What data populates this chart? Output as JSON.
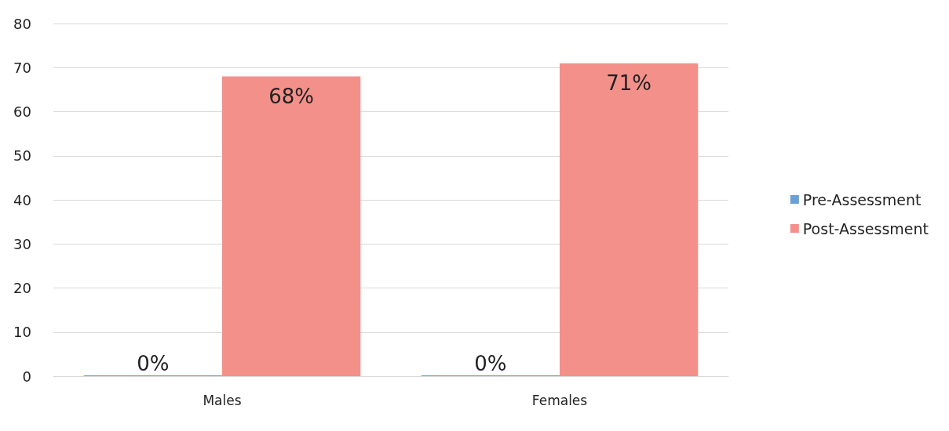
{
  "chart_data": {
    "type": "bar",
    "categories": [
      "Males",
      "Females"
    ],
    "series": [
      {
        "name": "Pre-Assessment",
        "color": "#6a9fd8",
        "values": [
          0,
          0
        ],
        "value_labels": [
          "0%",
          "0%"
        ]
      },
      {
        "name": "Post-Assessment",
        "color": "#f4908a",
        "values": [
          68,
          71
        ],
        "value_labels": [
          "68%",
          "71%"
        ]
      }
    ],
    "ylim": [
      0,
      80
    ],
    "yticks": [
      0,
      10,
      20,
      30,
      40,
      50,
      60,
      70,
      80
    ],
    "grid": "y",
    "legend": "right"
  }
}
